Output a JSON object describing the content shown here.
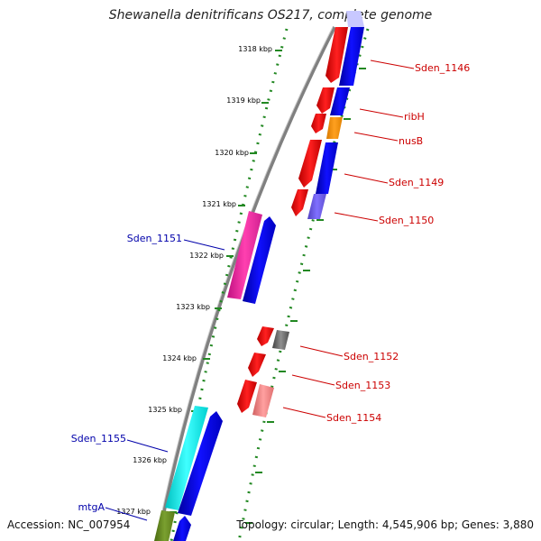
{
  "title": "Shewanella denitrificans OS217, complete genome",
  "accession": "Accession: NC_007954",
  "topology": "Topology: circular; Length: 4,545,906 bp; Genes: 3,880",
  "ticks": [
    "1318 kbp",
    "1319 kbp",
    "1320 kbp",
    "1321 kbp",
    "1322 kbp",
    "1323 kbp",
    "1324 kbp",
    "1325 kbp",
    "1326 kbp",
    "1327 kbp"
  ],
  "colors": {
    "forward_label": "#0000aa",
    "reverse_label": "#cc0000",
    "axis_dots": "#228822",
    "backbone": "#888888"
  },
  "genes": [
    {
      "label": "Sden_1146",
      "color": "#ff0000"
    },
    {
      "label": "ribH",
      "color": "#ff0000"
    },
    {
      "label": "nusB",
      "color": "#ff0000"
    },
    {
      "label": "Sden_1149",
      "color": "#ff0000"
    },
    {
      "label": "Sden_1150",
      "color": "#ff0000"
    },
    {
      "label": "Sden_1151",
      "color": "#0000aa"
    },
    {
      "label": "Sden_1152",
      "color": "#ff0000"
    },
    {
      "label": "Sden_1153",
      "color": "#ff0000"
    },
    {
      "label": "Sden_1154",
      "color": "#ff0000"
    },
    {
      "label": "Sden_1155",
      "color": "#0000aa"
    },
    {
      "label": "mtgA",
      "color": "#0000aa"
    }
  ]
}
